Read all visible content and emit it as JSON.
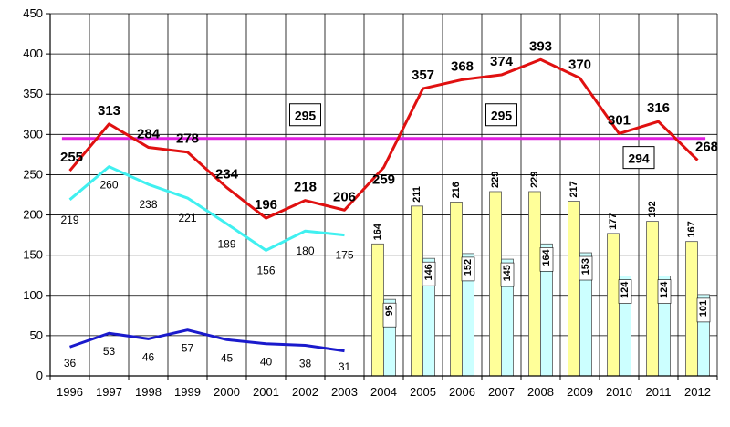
{
  "chart_data": {
    "type": "line",
    "x": [
      "1996",
      "1997",
      "1998",
      "1999",
      "2000",
      "2001",
      "2002",
      "2003",
      "2004",
      "2005",
      "2006",
      "2007",
      "2008",
      "2009",
      "2010",
      "2011",
      "2012"
    ],
    "ylim": [
      0,
      450
    ],
    "yticks": [
      0,
      50,
      100,
      150,
      200,
      250,
      300,
      350,
      400,
      450
    ],
    "grid": true,
    "series": [
      {
        "kind": "line",
        "color": "#e01010",
        "values": [
          255,
          313,
          284,
          278,
          234,
          196,
          218,
          206,
          259,
          357,
          368,
          374,
          393,
          370,
          301,
          316,
          268
        ]
      },
      {
        "kind": "line",
        "color": "#40f0f0",
        "values": [
          219,
          260,
          238,
          221,
          189,
          156,
          180,
          175,
          null,
          null,
          null,
          null,
          null,
          null,
          null,
          null,
          null
        ]
      },
      {
        "kind": "line",
        "color": "#1a1acc",
        "values": [
          36,
          53,
          46,
          57,
          45,
          40,
          38,
          31,
          null,
          null,
          null,
          null,
          null,
          null,
          null,
          null,
          null
        ]
      },
      {
        "kind": "bar",
        "color": "#ffff99",
        "values": [
          null,
          null,
          null,
          null,
          null,
          null,
          null,
          null,
          164,
          211,
          216,
          229,
          229,
          217,
          177,
          192,
          167
        ]
      },
      {
        "kind": "bar",
        "color": "#ccffff",
        "values": [
          null,
          null,
          null,
          null,
          null,
          null,
          null,
          null,
          95,
          146,
          152,
          145,
          164,
          153,
          124,
          124,
          101
        ]
      }
    ],
    "reference_lines": [
      {
        "value": 295,
        "color": "#e020e0",
        "label": "295",
        "label_year": "2002"
      },
      {
        "value": 295,
        "color": "#e020e0",
        "label": "295",
        "label_year": "2007"
      },
      {
        "value": 294,
        "color": "#e020e0",
        "label": "294",
        "label_year": "2010"
      }
    ]
  }
}
